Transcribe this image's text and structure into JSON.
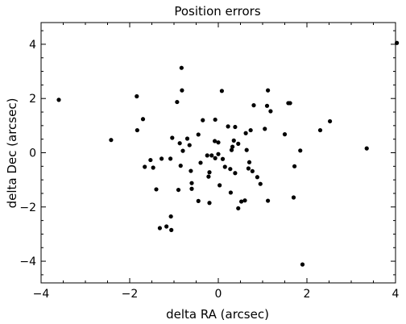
{
  "chart_data": {
    "type": "scatter",
    "title": "Position errors",
    "xlabel": "delta RA (arcsec)",
    "ylabel": "delta Dec (arcsec)",
    "xlim": [
      -4,
      4
    ],
    "ylim": [
      -4.8,
      4.8
    ],
    "xticks": [
      -4,
      -2,
      0,
      2,
      4
    ],
    "yticks": [
      -4,
      -2,
      0,
      2,
      4
    ],
    "xtick_labels": [
      "−4",
      "−2",
      "0",
      "2",
      "4"
    ],
    "ytick_labels": [
      "−4",
      "−2",
      "0",
      "2",
      "4"
    ],
    "grid": false,
    "marker_color": "#000000",
    "points": [
      [
        -3.6,
        1.95
      ],
      [
        -2.42,
        0.47
      ],
      [
        -1.84,
        2.08
      ],
      [
        -1.83,
        0.83
      ],
      [
        -1.7,
        1.24
      ],
      [
        -1.66,
        -0.52
      ],
      [
        -1.53,
        -0.27
      ],
      [
        -1.47,
        -0.55
      ],
      [
        -1.4,
        -1.35
      ],
      [
        -1.28,
        -0.22
      ],
      [
        -1.32,
        -2.78
      ],
      [
        -1.17,
        -2.72
      ],
      [
        -1.08,
        -0.22
      ],
      [
        -1.07,
        -2.35
      ],
      [
        -1.06,
        -2.85
      ],
      [
        -1.04,
        0.55
      ],
      [
        -0.93,
        1.87
      ],
      [
        -0.9,
        -1.37
      ],
      [
        -0.87,
        0.35
      ],
      [
        -0.85,
        -0.48
      ],
      [
        -0.83,
        3.13
      ],
      [
        -0.82,
        2.3
      ],
      [
        -0.8,
        0.07
      ],
      [
        -0.7,
        0.52
      ],
      [
        -0.65,
        0.28
      ],
      [
        -0.62,
        -0.67
      ],
      [
        -0.6,
        -1.33
      ],
      [
        -0.6,
        -1.12
      ],
      [
        -0.45,
        0.67
      ],
      [
        -0.45,
        -1.78
      ],
      [
        -0.35,
        1.2
      ],
      [
        -0.4,
        -0.37
      ],
      [
        -0.25,
        -0.1
      ],
      [
        -0.22,
        -0.88
      ],
      [
        -0.2,
        -0.72
      ],
      [
        -0.2,
        -1.85
      ],
      [
        -0.15,
        -0.1
      ],
      [
        -0.07,
        1.22
      ],
      [
        -0.08,
        0.43
      ],
      [
        -0.07,
        -0.2
      ],
      [
        0.0,
        -0.05
      ],
      [
        0.0,
        0.38
      ],
      [
        0.03,
        -1.2
      ],
      [
        0.08,
        2.28
      ],
      [
        0.1,
        -0.23
      ],
      [
        0.15,
        -0.52
      ],
      [
        0.22,
        0.97
      ],
      [
        0.27,
        -0.6
      ],
      [
        0.3,
        0.1
      ],
      [
        0.28,
        -1.47
      ],
      [
        0.32,
        0.22
      ],
      [
        0.35,
        0.45
      ],
      [
        0.38,
        0.95
      ],
      [
        0.38,
        -0.75
      ],
      [
        0.45,
        0.33
      ],
      [
        0.45,
        -2.05
      ],
      [
        0.52,
        -1.8
      ],
      [
        0.6,
        -1.76
      ],
      [
        0.64,
        0.1
      ],
      [
        0.62,
        0.72
      ],
      [
        0.68,
        -0.58
      ],
      [
        0.73,
        0.83
      ],
      [
        0.7,
        -0.35
      ],
      [
        0.77,
        -0.68
      ],
      [
        0.8,
        1.75
      ],
      [
        0.88,
        -0.9
      ],
      [
        0.95,
        -1.15
      ],
      [
        1.05,
        0.88
      ],
      [
        1.1,
        1.73
      ],
      [
        1.12,
        2.3
      ],
      [
        1.12,
        -1.77
      ],
      [
        1.18,
        1.53
      ],
      [
        1.5,
        0.68
      ],
      [
        1.58,
        1.83
      ],
      [
        1.62,
        1.83
      ],
      [
        1.7,
        -1.65
      ],
      [
        1.72,
        -0.5
      ],
      [
        1.85,
        0.08
      ],
      [
        1.9,
        -4.12
      ],
      [
        2.3,
        0.83
      ],
      [
        2.52,
        1.16
      ],
      [
        3.35,
        0.16
      ],
      [
        4.03,
        4.05
      ]
    ]
  }
}
